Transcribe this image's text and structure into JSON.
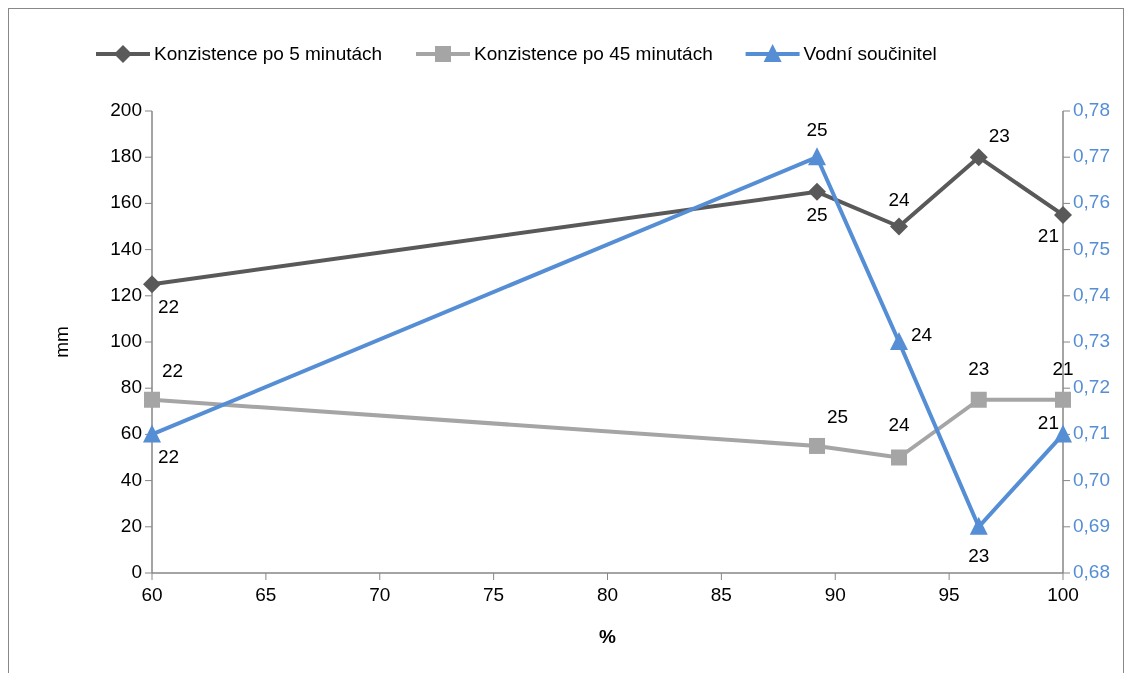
{
  "chart_data": {
    "type": "line",
    "xlabel": "%",
    "ylabel": "mm",
    "x": [
      60,
      89.2,
      92.8,
      96.3,
      100
    ],
    "series": [
      {
        "name": "Konzistence po 5 minutách",
        "color": "#595959",
        "marker": "diamond",
        "values": [
          125,
          165,
          150,
          180,
          155
        ]
      },
      {
        "name": "Konzistence po 45 minutách",
        "color": "#a5a5a5",
        "marker": "square",
        "values": [
          75,
          55,
          50,
          75,
          75
        ]
      },
      {
        "name": "Vodní součinitel",
        "color": "#558ed5",
        "marker": "triangle",
        "axis": "y2",
        "values": [
          0.71,
          0.77,
          0.73,
          0.69,
          0.71
        ]
      }
    ],
    "annotations": [
      {
        "text": "22",
        "x": 60,
        "y": 125
      },
      {
        "text": "25",
        "x": 89.2,
        "y": 165
      },
      {
        "text": "24",
        "x": 92.8,
        "y": 150
      },
      {
        "text": "23",
        "x": 96.3,
        "y": 180
      },
      {
        "text": "21",
        "x": 100,
        "y": 155
      },
      {
        "text": "22",
        "x": 60,
        "y": 75
      },
      {
        "text": "25",
        "x": 89.2,
        "y": 55
      },
      {
        "text": "24",
        "x": 92.8,
        "y": 50
      },
      {
        "text": "23",
        "x": 96.3,
        "y": 75
      },
      {
        "text": "21",
        "x": 100,
        "y": 75
      },
      {
        "text": "22",
        "x": 60,
        "y": 60
      },
      {
        "text": "25",
        "x": 89.2,
        "y": 180
      },
      {
        "text": "24",
        "x": 92.8,
        "y": 100
      },
      {
        "text": "23",
        "x": 96.3,
        "y": 20
      },
      {
        "text": "21",
        "x": 100,
        "y": 60
      }
    ],
    "xlim": [
      60,
      100
    ],
    "xticks": [
      60,
      65,
      70,
      75,
      80,
      85,
      90,
      95,
      100
    ],
    "ylim": [
      0,
      200
    ],
    "yticks": [
      0,
      20,
      40,
      60,
      80,
      100,
      120,
      140,
      160,
      180,
      200
    ],
    "y2lim": [
      0.68,
      0.78
    ],
    "y2ticks": [
      {
        "value": 0.68,
        "label": "0,68"
      },
      {
        "value": 0.69,
        "label": "0,69"
      },
      {
        "value": 0.7,
        "label": "0,70"
      },
      {
        "value": 0.71,
        "label": "0,71"
      },
      {
        "value": 0.72,
        "label": "0,72"
      },
      {
        "value": 0.73,
        "label": "0,73"
      },
      {
        "value": 0.74,
        "label": "0,74"
      },
      {
        "value": 0.75,
        "label": "0,75"
      },
      {
        "value": 0.76,
        "label": "0,76"
      },
      {
        "value": 0.77,
        "label": "0,77"
      },
      {
        "value": 0.78,
        "label": "0,78"
      }
    ],
    "legend": "top",
    "grid": false
  }
}
